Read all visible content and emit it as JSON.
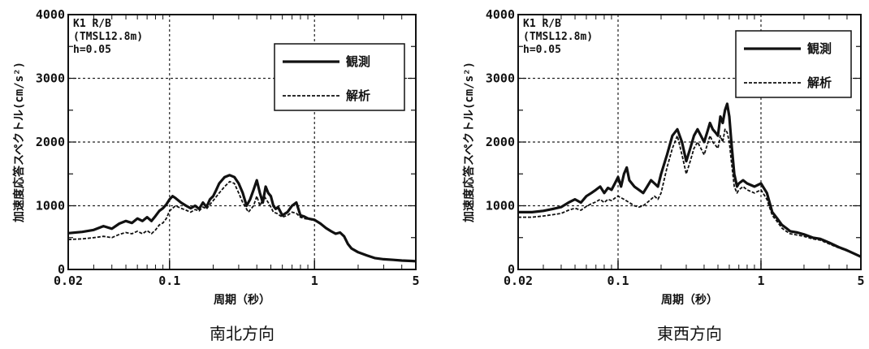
{
  "charts": [
    {
      "caption": "南北方向",
      "info_lines": [
        "K1 R/B",
        "(TMSL12.8m)",
        "h=0.05"
      ],
      "xlabel": "周期（秒）",
      "ylabel": "加速度応答スペクトル(cm/s²)",
      "x_ticks": [
        "0.02",
        "0.1",
        "1",
        "5"
      ],
      "y_ticks": [
        "0",
        "1000",
        "2000",
        "3000",
        "4000"
      ],
      "legend": [
        "観測",
        "解析"
      ]
    },
    {
      "caption": "東西方向",
      "info_lines": [
        "K1 R/B",
        "(TMSL12.8m)",
        "h=0.05"
      ],
      "xlabel": "周期（秒）",
      "ylabel": "加速度応答スペクトル(cm/s²)",
      "x_ticks": [
        "0.02",
        "0.1",
        "1",
        "5"
      ],
      "y_ticks": [
        "0",
        "1000",
        "2000",
        "3000",
        "4000"
      ],
      "legend": [
        "観測",
        "解析"
      ]
    }
  ],
  "chart_data": [
    {
      "type": "line",
      "xlabel": "周期（秒）",
      "ylabel": "加速度応答スペクトル(cm/s²)",
      "x_scale": "log",
      "xlim": [
        0.02,
        5
      ],
      "ylim": [
        0,
        4000
      ],
      "grid": true,
      "legend_position": "top-right",
      "series": [
        {
          "name": "観測",
          "style": "solid",
          "x": [
            0.02,
            0.025,
            0.03,
            0.035,
            0.04,
            0.045,
            0.05,
            0.055,
            0.06,
            0.065,
            0.07,
            0.075,
            0.08,
            0.085,
            0.09,
            0.095,
            0.1,
            0.105,
            0.11,
            0.12,
            0.13,
            0.14,
            0.15,
            0.16,
            0.17,
            0.18,
            0.19,
            0.2,
            0.21,
            0.22,
            0.24,
            0.26,
            0.28,
            0.3,
            0.32,
            0.34,
            0.36,
            0.38,
            0.4,
            0.42,
            0.44,
            0.46,
            0.48,
            0.5,
            0.52,
            0.54,
            0.56,
            0.6,
            0.65,
            0.7,
            0.75,
            0.8,
            0.85,
            0.9,
            1.0,
            1.1,
            1.2,
            1.3,
            1.4,
            1.5,
            1.6,
            1.7,
            1.8,
            2.0,
            2.3,
            2.6,
            3.0,
            3.5,
            4.0,
            5.0
          ],
          "y": [
            570,
            590,
            620,
            680,
            640,
            720,
            760,
            730,
            800,
            760,
            820,
            760,
            840,
            920,
            960,
            1020,
            1100,
            1150,
            1120,
            1050,
            1000,
            960,
            1000,
            950,
            1050,
            980,
            1100,
            1150,
            1250,
            1350,
            1450,
            1480,
            1450,
            1350,
            1200,
            1000,
            1100,
            1250,
            1400,
            1200,
            1050,
            1300,
            1200,
            1150,
            1000,
            950,
            980,
            850,
            900,
            1000,
            1050,
            850,
            830,
            800,
            780,
            720,
            650,
            600,
            560,
            580,
            520,
            400,
            330,
            270,
            220,
            180,
            160,
            150,
            140,
            130
          ]
        },
        {
          "name": "解析",
          "style": "dashed",
          "x": [
            0.02,
            0.025,
            0.03,
            0.035,
            0.04,
            0.045,
            0.05,
            0.055,
            0.06,
            0.065,
            0.07,
            0.075,
            0.08,
            0.085,
            0.09,
            0.095,
            0.1,
            0.11,
            0.12,
            0.13,
            0.14,
            0.15,
            0.16,
            0.17,
            0.18,
            0.19,
            0.2,
            0.22,
            0.24,
            0.26,
            0.28,
            0.3,
            0.32,
            0.35,
            0.38,
            0.4,
            0.42,
            0.45,
            0.48,
            0.5,
            0.52,
            0.55,
            0.6,
            0.65,
            0.7,
            0.75,
            0.8,
            0.85,
            0.9,
            1.0,
            1.1,
            1.2,
            1.3,
            1.4,
            1.5,
            1.6,
            1.7,
            1.8,
            2.0,
            2.3,
            2.6,
            3.0,
            3.5,
            4.0,
            5.0
          ],
          "y": [
            470,
            480,
            500,
            520,
            500,
            550,
            580,
            560,
            600,
            560,
            610,
            560,
            620,
            700,
            730,
            800,
            920,
            1000,
            960,
            930,
            900,
            940,
            920,
            980,
            950,
            1020,
            1080,
            1200,
            1300,
            1380,
            1350,
            1200,
            1050,
            900,
            1000,
            1150,
            1000,
            1150,
            1050,
            980,
            900,
            880,
            820,
            850,
            900,
            880,
            820,
            800,
            790,
            770,
            720,
            650,
            600,
            560,
            580,
            520,
            400,
            330,
            270,
            220,
            180,
            160,
            150,
            140,
            130
          ]
        }
      ]
    },
    {
      "type": "line",
      "xlabel": "周期（秒）",
      "ylabel": "加速度応答スペクトル(cm/s²)",
      "x_scale": "log",
      "xlim": [
        0.02,
        5
      ],
      "ylim": [
        0,
        4000
      ],
      "grid": true,
      "legend_position": "top-right",
      "series": [
        {
          "name": "観測",
          "style": "solid",
          "x": [
            0.02,
            0.025,
            0.03,
            0.035,
            0.04,
            0.045,
            0.05,
            0.055,
            0.06,
            0.065,
            0.07,
            0.075,
            0.08,
            0.085,
            0.09,
            0.095,
            0.1,
            0.105,
            0.11,
            0.115,
            0.12,
            0.13,
            0.14,
            0.15,
            0.16,
            0.17,
            0.18,
            0.19,
            0.2,
            0.22,
            0.24,
            0.26,
            0.28,
            0.3,
            0.32,
            0.34,
            0.36,
            0.38,
            0.4,
            0.42,
            0.44,
            0.46,
            0.48,
            0.5,
            0.52,
            0.54,
            0.56,
            0.58,
            0.6,
            0.62,
            0.65,
            0.68,
            0.7,
            0.75,
            0.8,
            0.9,
            1.0,
            1.1,
            1.2,
            1.3,
            1.4,
            1.5,
            1.6,
            1.8,
            2.0,
            2.3,
            2.6,
            3.0,
            3.5,
            4.0,
            5.0
          ],
          "y": [
            900,
            900,
            920,
            950,
            980,
            1050,
            1100,
            1050,
            1150,
            1200,
            1250,
            1300,
            1200,
            1280,
            1250,
            1350,
            1450,
            1300,
            1500,
            1600,
            1400,
            1300,
            1250,
            1200,
            1300,
            1400,
            1350,
            1300,
            1500,
            1800,
            2100,
            2200,
            2000,
            1700,
            1900,
            2100,
            2200,
            2100,
            2000,
            2150,
            2300,
            2200,
            2150,
            2100,
            2400,
            2300,
            2500,
            2600,
            2400,
            2000,
            1500,
            1300,
            1350,
            1400,
            1350,
            1300,
            1350,
            1200,
            900,
            800,
            700,
            650,
            600,
            580,
            550,
            500,
            480,
            420,
            350,
            300,
            200
          ]
        },
        {
          "name": "解析",
          "style": "dashed",
          "x": [
            0.02,
            0.025,
            0.03,
            0.035,
            0.04,
            0.045,
            0.05,
            0.055,
            0.06,
            0.065,
            0.07,
            0.075,
            0.08,
            0.085,
            0.09,
            0.095,
            0.1,
            0.11,
            0.12,
            0.13,
            0.14,
            0.15,
            0.16,
            0.17,
            0.18,
            0.19,
            0.2,
            0.22,
            0.24,
            0.26,
            0.28,
            0.3,
            0.32,
            0.34,
            0.36,
            0.38,
            0.4,
            0.42,
            0.44,
            0.46,
            0.48,
            0.5,
            0.52,
            0.54,
            0.56,
            0.58,
            0.6,
            0.62,
            0.65,
            0.68,
            0.7,
            0.75,
            0.8,
            0.9,
            1.0,
            1.1,
            1.2,
            1.3,
            1.4,
            1.5,
            1.6,
            1.8,
            2.0,
            2.3,
            2.6,
            3.0,
            3.5,
            4.0,
            5.0
          ],
          "y": [
            820,
            820,
            840,
            860,
            880,
            930,
            960,
            930,
            990,
            1030,
            1060,
            1100,
            1050,
            1100,
            1080,
            1120,
            1150,
            1100,
            1050,
            1000,
            980,
            1000,
            1050,
            1100,
            1150,
            1100,
            1200,
            1600,
            1900,
            2100,
            1800,
            1500,
            1700,
            1900,
            2000,
            1900,
            1800,
            1950,
            2100,
            2000,
            1950,
            1900,
            2100,
            2000,
            2200,
            2150,
            2000,
            1700,
            1300,
            1200,
            1250,
            1300,
            1250,
            1200,
            1250,
            1100,
            850,
            750,
            650,
            600,
            560,
            540,
            520,
            480,
            460,
            400,
            340,
            290,
            200
          ]
        }
      ]
    }
  ]
}
